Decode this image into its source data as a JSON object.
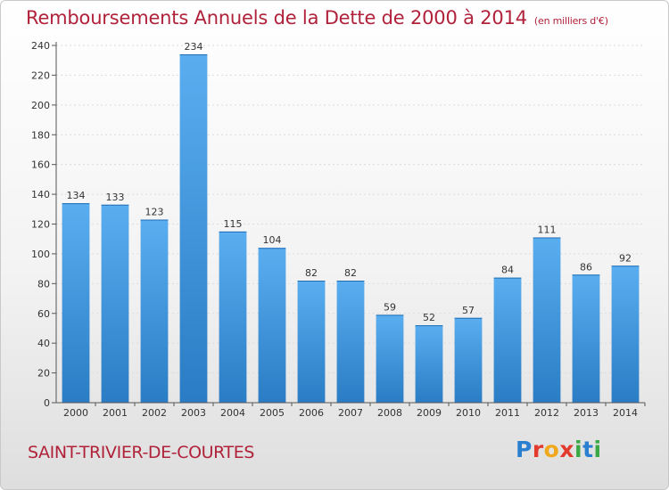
{
  "chart_data": {
    "type": "bar",
    "title": "Remboursements Annuels de la Dette de 2000 à 2014",
    "subtitle": "(en milliers d'€)",
    "xlabel": "",
    "ylabel": "",
    "categories": [
      "2000",
      "2001",
      "2002",
      "2003",
      "2004",
      "2005",
      "2006",
      "2007",
      "2008",
      "2009",
      "2010",
      "2011",
      "2012",
      "2013",
      "2014"
    ],
    "values": [
      134,
      133,
      123,
      234,
      115,
      104,
      82,
      82,
      59,
      52,
      57,
      84,
      111,
      86,
      92
    ],
    "ylim": [
      0,
      240
    ],
    "yticks": [
      0,
      20,
      40,
      60,
      80,
      100,
      120,
      140,
      160,
      180,
      200,
      220,
      240
    ],
    "grid": true,
    "legend": "none",
    "data_labels": true,
    "bar_color": "#3f94d8"
  },
  "footer": {
    "commune": "SAINT-TRIVIER-DE-COURTES",
    "logo": "Proxiti"
  }
}
